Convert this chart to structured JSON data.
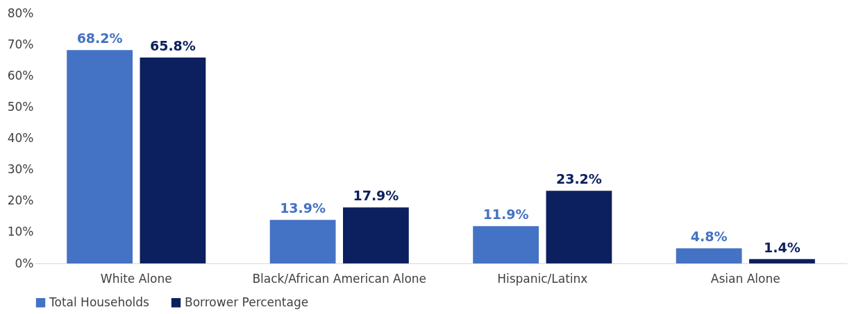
{
  "chart_data": {
    "type": "bar",
    "categories": [
      "White Alone",
      "Black/African American Alone",
      "Hispanic/Latinx",
      "Asian Alone"
    ],
    "series": [
      {
        "name": "Total Households",
        "color": "#4472c4",
        "values": [
          68.2,
          13.9,
          11.9,
          4.8
        ],
        "value_labels": [
          "68.2%",
          "13.9%",
          "11.9%",
          "4.8%"
        ]
      },
      {
        "name": "Borrower Percentage",
        "color": "#0c1f5e",
        "values": [
          65.8,
          17.9,
          23.2,
          1.4
        ],
        "value_labels": [
          "65.8%",
          "17.9%",
          "23.2%",
          "1.4%"
        ]
      }
    ],
    "ylim": [
      0,
      80
    ],
    "yticks": [
      {
        "value": 0,
        "label": "0%"
      },
      {
        "value": 10,
        "label": "10%"
      },
      {
        "value": 20,
        "label": "20%"
      },
      {
        "value": 30,
        "label": "30%"
      },
      {
        "value": 40,
        "label": "40%"
      },
      {
        "value": 50,
        "label": "50%"
      },
      {
        "value": 60,
        "label": "60%"
      },
      {
        "value": 70,
        "label": "70%"
      },
      {
        "value": 80,
        "label": "80%"
      }
    ],
    "grid": false,
    "legend": "bottom"
  }
}
